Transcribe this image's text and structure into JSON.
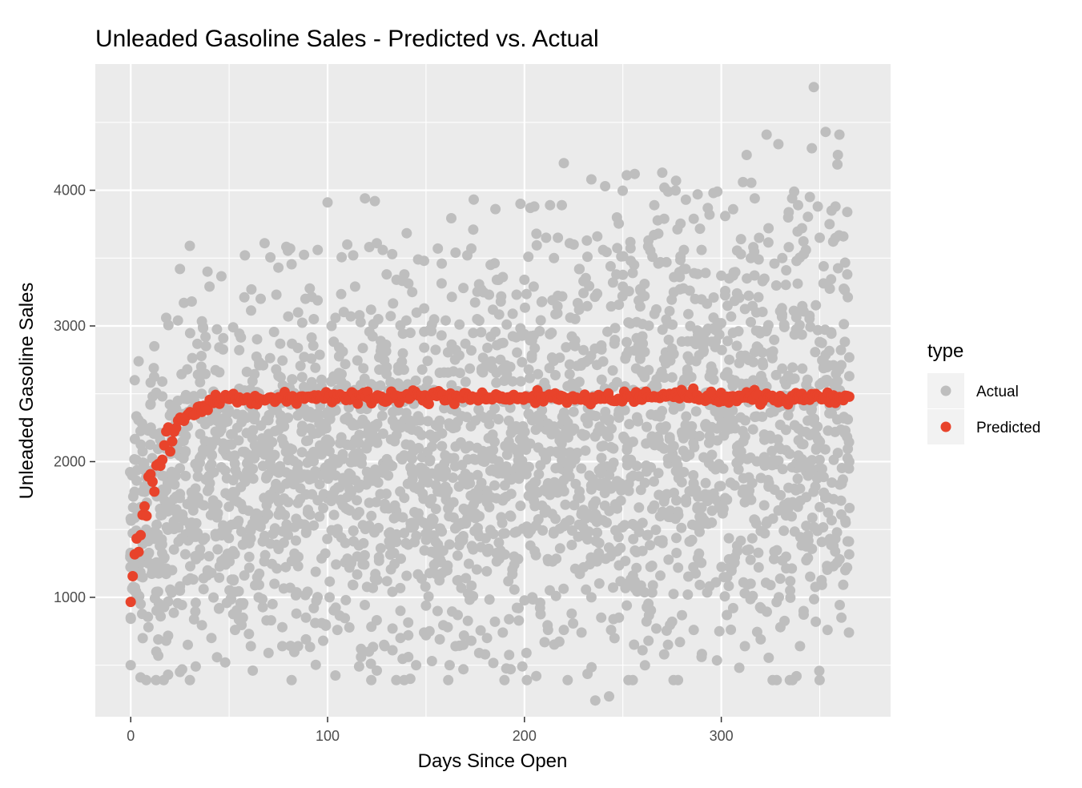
{
  "chart_data": {
    "type": "scatter",
    "title": "Unleaded Gasoline Sales - Predicted vs. Actual",
    "xlabel": "Days Since Open",
    "ylabel": "Unleaded Gasoline Sales",
    "xlim": [
      -18,
      386
    ],
    "ylim": [
      120,
      4930
    ],
    "x_ticks": [
      0,
      100,
      200,
      300
    ],
    "y_ticks": [
      1000,
      2000,
      3000,
      4000
    ],
    "grid": true,
    "legend": {
      "title": "type",
      "placement": "right",
      "entries": [
        "Actual",
        "Predicted"
      ]
    },
    "colors": {
      "panel_background": "#ebebeb",
      "grid": "#ffffff",
      "actual": "#bebebe",
      "predicted": "#e8432b"
    },
    "series": [
      {
        "name": "Predicted",
        "model": {
          "form": "saturating",
          "x_range": [
            0,
            365
          ],
          "plateau": 2475,
          "start": 950,
          "rate": 0.085,
          "noise": 22,
          "points": 365
        }
      },
      {
        "name": "Actual",
        "summary": {
          "x_range": [
            0,
            365
          ],
          "points_per_day_approx": 7,
          "y_min": 240,
          "y_max": 4760,
          "typical_band_early": [
            900,
            2700
          ],
          "typical_band_late": [
            1200,
            3800
          ]
        },
        "points": [
          [
            0,
            500
          ],
          [
            0,
            850
          ],
          [
            0,
            1580
          ],
          [
            1,
            1270
          ],
          [
            2,
            2600
          ],
          [
            3,
            1860
          ],
          [
            4,
            2740
          ],
          [
            5,
            410
          ],
          [
            8,
            1470
          ],
          [
            10,
            2420
          ],
          [
            12,
            2850
          ],
          [
            13,
            600
          ],
          [
            16,
            2590
          ],
          [
            18,
            3060
          ],
          [
            18,
            680
          ],
          [
            19,
            430
          ],
          [
            24,
            3040
          ],
          [
            25,
            3420
          ],
          [
            25,
            450
          ],
          [
            27,
            3170
          ],
          [
            30,
            3590
          ],
          [
            31,
            3180
          ],
          [
            33,
            490
          ],
          [
            38,
            2920
          ],
          [
            39,
            3400
          ],
          [
            40,
            3290
          ],
          [
            41,
            700
          ],
          [
            47,
            2910
          ],
          [
            48,
            520
          ],
          [
            52,
            2990
          ],
          [
            53,
            760
          ],
          [
            58,
            3520
          ],
          [
            62,
            460
          ],
          [
            66,
            3200
          ],
          [
            68,
            3610
          ],
          [
            70,
            590
          ],
          [
            74,
            3230
          ],
          [
            75,
            3430
          ],
          [
            77,
            640
          ],
          [
            80,
            3070
          ],
          [
            81,
            3570
          ],
          [
            85,
            3100
          ],
          [
            89,
            690
          ],
          [
            93,
            3050
          ],
          [
            95,
            3560
          ],
          [
            99,
            800
          ],
          [
            100,
            3910
          ],
          [
            102,
            3000
          ],
          [
            104,
            3060
          ],
          [
            107,
            1440
          ],
          [
            110,
            3600
          ],
          [
            113,
            3520
          ],
          [
            114,
            3290
          ],
          [
            116,
            490
          ],
          [
            117,
            620
          ],
          [
            119,
            3940
          ],
          [
            122,
            510
          ],
          [
            124,
            3920
          ],
          [
            125,
            3610
          ],
          [
            127,
            2890
          ],
          [
            128,
            3560
          ],
          [
            130,
            3380
          ],
          [
            133,
            610
          ],
          [
            135,
            3340
          ],
          [
            137,
            700
          ],
          [
            139,
            3380
          ],
          [
            140,
            3040
          ],
          [
            141,
            560
          ],
          [
            142,
            400
          ],
          [
            143,
            3250
          ],
          [
            146,
            3490
          ],
          [
            149,
            3480
          ],
          [
            150,
            720
          ],
          [
            153,
            3010
          ],
          [
            156,
            3570
          ],
          [
            158,
            3460
          ],
          [
            160,
            3040
          ],
          [
            162,
            500
          ],
          [
            165,
            3540
          ],
          [
            167,
            3010
          ],
          [
            169,
            3280
          ],
          [
            171,
            3520
          ],
          [
            173,
            3570
          ],
          [
            174,
            3710
          ],
          [
            176,
            3050
          ],
          [
            178,
            3270
          ],
          [
            180,
            580
          ],
          [
            182,
            3230
          ],
          [
            184,
            3120
          ],
          [
            186,
            3340
          ],
          [
            188,
            3180
          ],
          [
            189,
            3360
          ],
          [
            191,
            3010
          ],
          [
            194,
            3090
          ],
          [
            196,
            3230
          ],
          [
            198,
            3900
          ],
          [
            200,
            3340
          ],
          [
            202,
            3510
          ],
          [
            203,
            3870
          ],
          [
            205,
            3880
          ],
          [
            206,
            420
          ],
          [
            209,
            3180
          ],
          [
            211,
            3650
          ],
          [
            213,
            3890
          ],
          [
            215,
            3500
          ],
          [
            217,
            3650
          ],
          [
            219,
            3890
          ],
          [
            220,
            4200
          ],
          [
            223,
            3610
          ],
          [
            225,
            3600
          ],
          [
            228,
            3420
          ],
          [
            230,
            3330
          ],
          [
            232,
            3510
          ],
          [
            234,
            4080
          ],
          [
            236,
            240
          ],
          [
            237,
            3660
          ],
          [
            240,
            3560
          ],
          [
            241,
            4030
          ],
          [
            243,
            270
          ],
          [
            245,
            3320
          ],
          [
            247,
            3800
          ],
          [
            250,
            3290
          ],
          [
            252,
            4110
          ],
          [
            254,
            3480
          ],
          [
            255,
            3390
          ],
          [
            256,
            4120
          ],
          [
            257,
            2910
          ],
          [
            259,
            3260
          ],
          [
            261,
            3310
          ],
          [
            263,
            3630
          ],
          [
            265,
            3510
          ],
          [
            266,
            3890
          ],
          [
            268,
            3460
          ],
          [
            270,
            4130
          ],
          [
            271,
            3790
          ],
          [
            273,
            3990
          ],
          [
            276,
            3360
          ],
          [
            277,
            4070
          ],
          [
            279,
            3270
          ],
          [
            281,
            3560
          ],
          [
            282,
            3930
          ],
          [
            284,
            3260
          ],
          [
            286,
            3790
          ],
          [
            288,
            3970
          ],
          [
            290,
            3560
          ],
          [
            292,
            3390
          ],
          [
            294,
            3820
          ],
          [
            296,
            3980
          ],
          [
            298,
            3990
          ],
          [
            300,
            3370
          ],
          [
            302,
            3810
          ],
          [
            304,
            3350
          ],
          [
            306,
            3860
          ],
          [
            308,
            3240
          ],
          [
            310,
            3640
          ],
          [
            311,
            4060
          ],
          [
            313,
            3350
          ],
          [
            315,
            3500
          ],
          [
            317,
            3940
          ],
          [
            319,
            3490
          ],
          [
            321,
            3330
          ],
          [
            323,
            4410
          ],
          [
            324,
            3720
          ],
          [
            327,
            3460
          ],
          [
            329,
            4340
          ],
          [
            331,
            3500
          ],
          [
            333,
            3410
          ],
          [
            334,
            3800
          ],
          [
            336,
            3940
          ],
          [
            337,
            3990
          ],
          [
            339,
            3890
          ],
          [
            341,
            3720
          ],
          [
            343,
            3560
          ],
          [
            345,
            3950
          ],
          [
            346,
            4310
          ],
          [
            347,
            4760
          ],
          [
            349,
            3880
          ],
          [
            350,
            3650
          ],
          [
            352,
            3440
          ],
          [
            353,
            4430
          ],
          [
            355,
            3750
          ],
          [
            356,
            3850
          ],
          [
            358,
            3880
          ],
          [
            359,
            4190
          ],
          [
            360,
            4410
          ],
          [
            362,
            3660
          ],
          [
            364,
            3840
          ],
          [
            364,
            3380
          ],
          [
            365,
            2630
          ],
          [
            365,
            2000
          ],
          [
            363,
            1200
          ],
          [
            361,
            850
          ],
          [
            357,
            1380
          ],
          [
            354,
            760
          ],
          [
            348,
            820
          ],
          [
            344,
            1290
          ],
          [
            340,
            640
          ],
          [
            335,
            1050
          ],
          [
            330,
            780
          ],
          [
            325,
            1090
          ],
          [
            320,
            690
          ],
          [
            316,
            1010
          ],
          [
            312,
            640
          ],
          [
            306,
            920
          ],
          [
            303,
            1150
          ],
          [
            299,
            750
          ],
          [
            294,
            1080
          ],
          [
            290,
            560
          ],
          [
            286,
            760
          ],
          [
            283,
            1020
          ],
          [
            279,
            670
          ],
          [
            275,
            820
          ],
          [
            271,
            580
          ],
          [
            267,
            770
          ],
          [
            263,
            680
          ],
          [
            260,
            610
          ],
          [
            256,
            1120
          ],
          [
            252,
            940
          ],
          [
            248,
            850
          ],
          [
            244,
            760
          ],
          [
            239,
            850
          ],
          [
            234,
            1000
          ],
          [
            229,
            740
          ],
          [
            224,
            880
          ],
          [
            220,
            760
          ],
          [
            216,
            1010
          ],
          [
            212,
            760
          ],
          [
            208,
            960
          ],
          [
            204,
            1000
          ],
          [
            201,
            590
          ],
          [
            197,
            920
          ],
          [
            193,
            470
          ],
          [
            189,
            740
          ],
          [
            185,
            820
          ],
          [
            181,
            700
          ],
          [
            177,
            590
          ],
          [
            173,
            680
          ],
          [
            169,
            470
          ],
          [
            165,
            640
          ],
          [
            161,
            780
          ],
          [
            157,
            690
          ],
          [
            153,
            530
          ],
          [
            149,
            740
          ],
          [
            145,
            500
          ],
          [
            141,
            720
          ],
          [
            137,
            900
          ],
          [
            133,
            770
          ],
          [
            129,
            640
          ],
          [
            125,
            460
          ],
          [
            121,
            600
          ],
          [
            117,
            560
          ],
          [
            113,
            1090
          ],
          [
            109,
            1400
          ],
          [
            105,
            760
          ],
          [
            101,
            1000
          ],
          [
            97,
            810
          ],
          [
            93,
            920
          ],
          [
            89,
            850
          ],
          [
            85,
            640
          ],
          [
            81,
            1070
          ],
          [
            77,
            780
          ],
          [
            73,
            1100
          ],
          [
            69,
            830
          ],
          [
            65,
            1000
          ],
          [
            61,
            640
          ],
          [
            57,
            850
          ],
          [
            53,
            1040
          ],
          [
            49,
            1270
          ],
          [
            45,
            920
          ],
          [
            41,
            1180
          ],
          [
            37,
            1060
          ],
          [
            33,
            960
          ],
          [
            29,
            650
          ],
          [
            25,
            1080
          ],
          [
            21,
            1200
          ],
          [
            17,
            940
          ],
          [
            13,
            1040
          ],
          [
            9,
            1320
          ],
          [
            6,
            1780
          ],
          [
            3,
            1000
          ]
        ]
      }
    ]
  }
}
